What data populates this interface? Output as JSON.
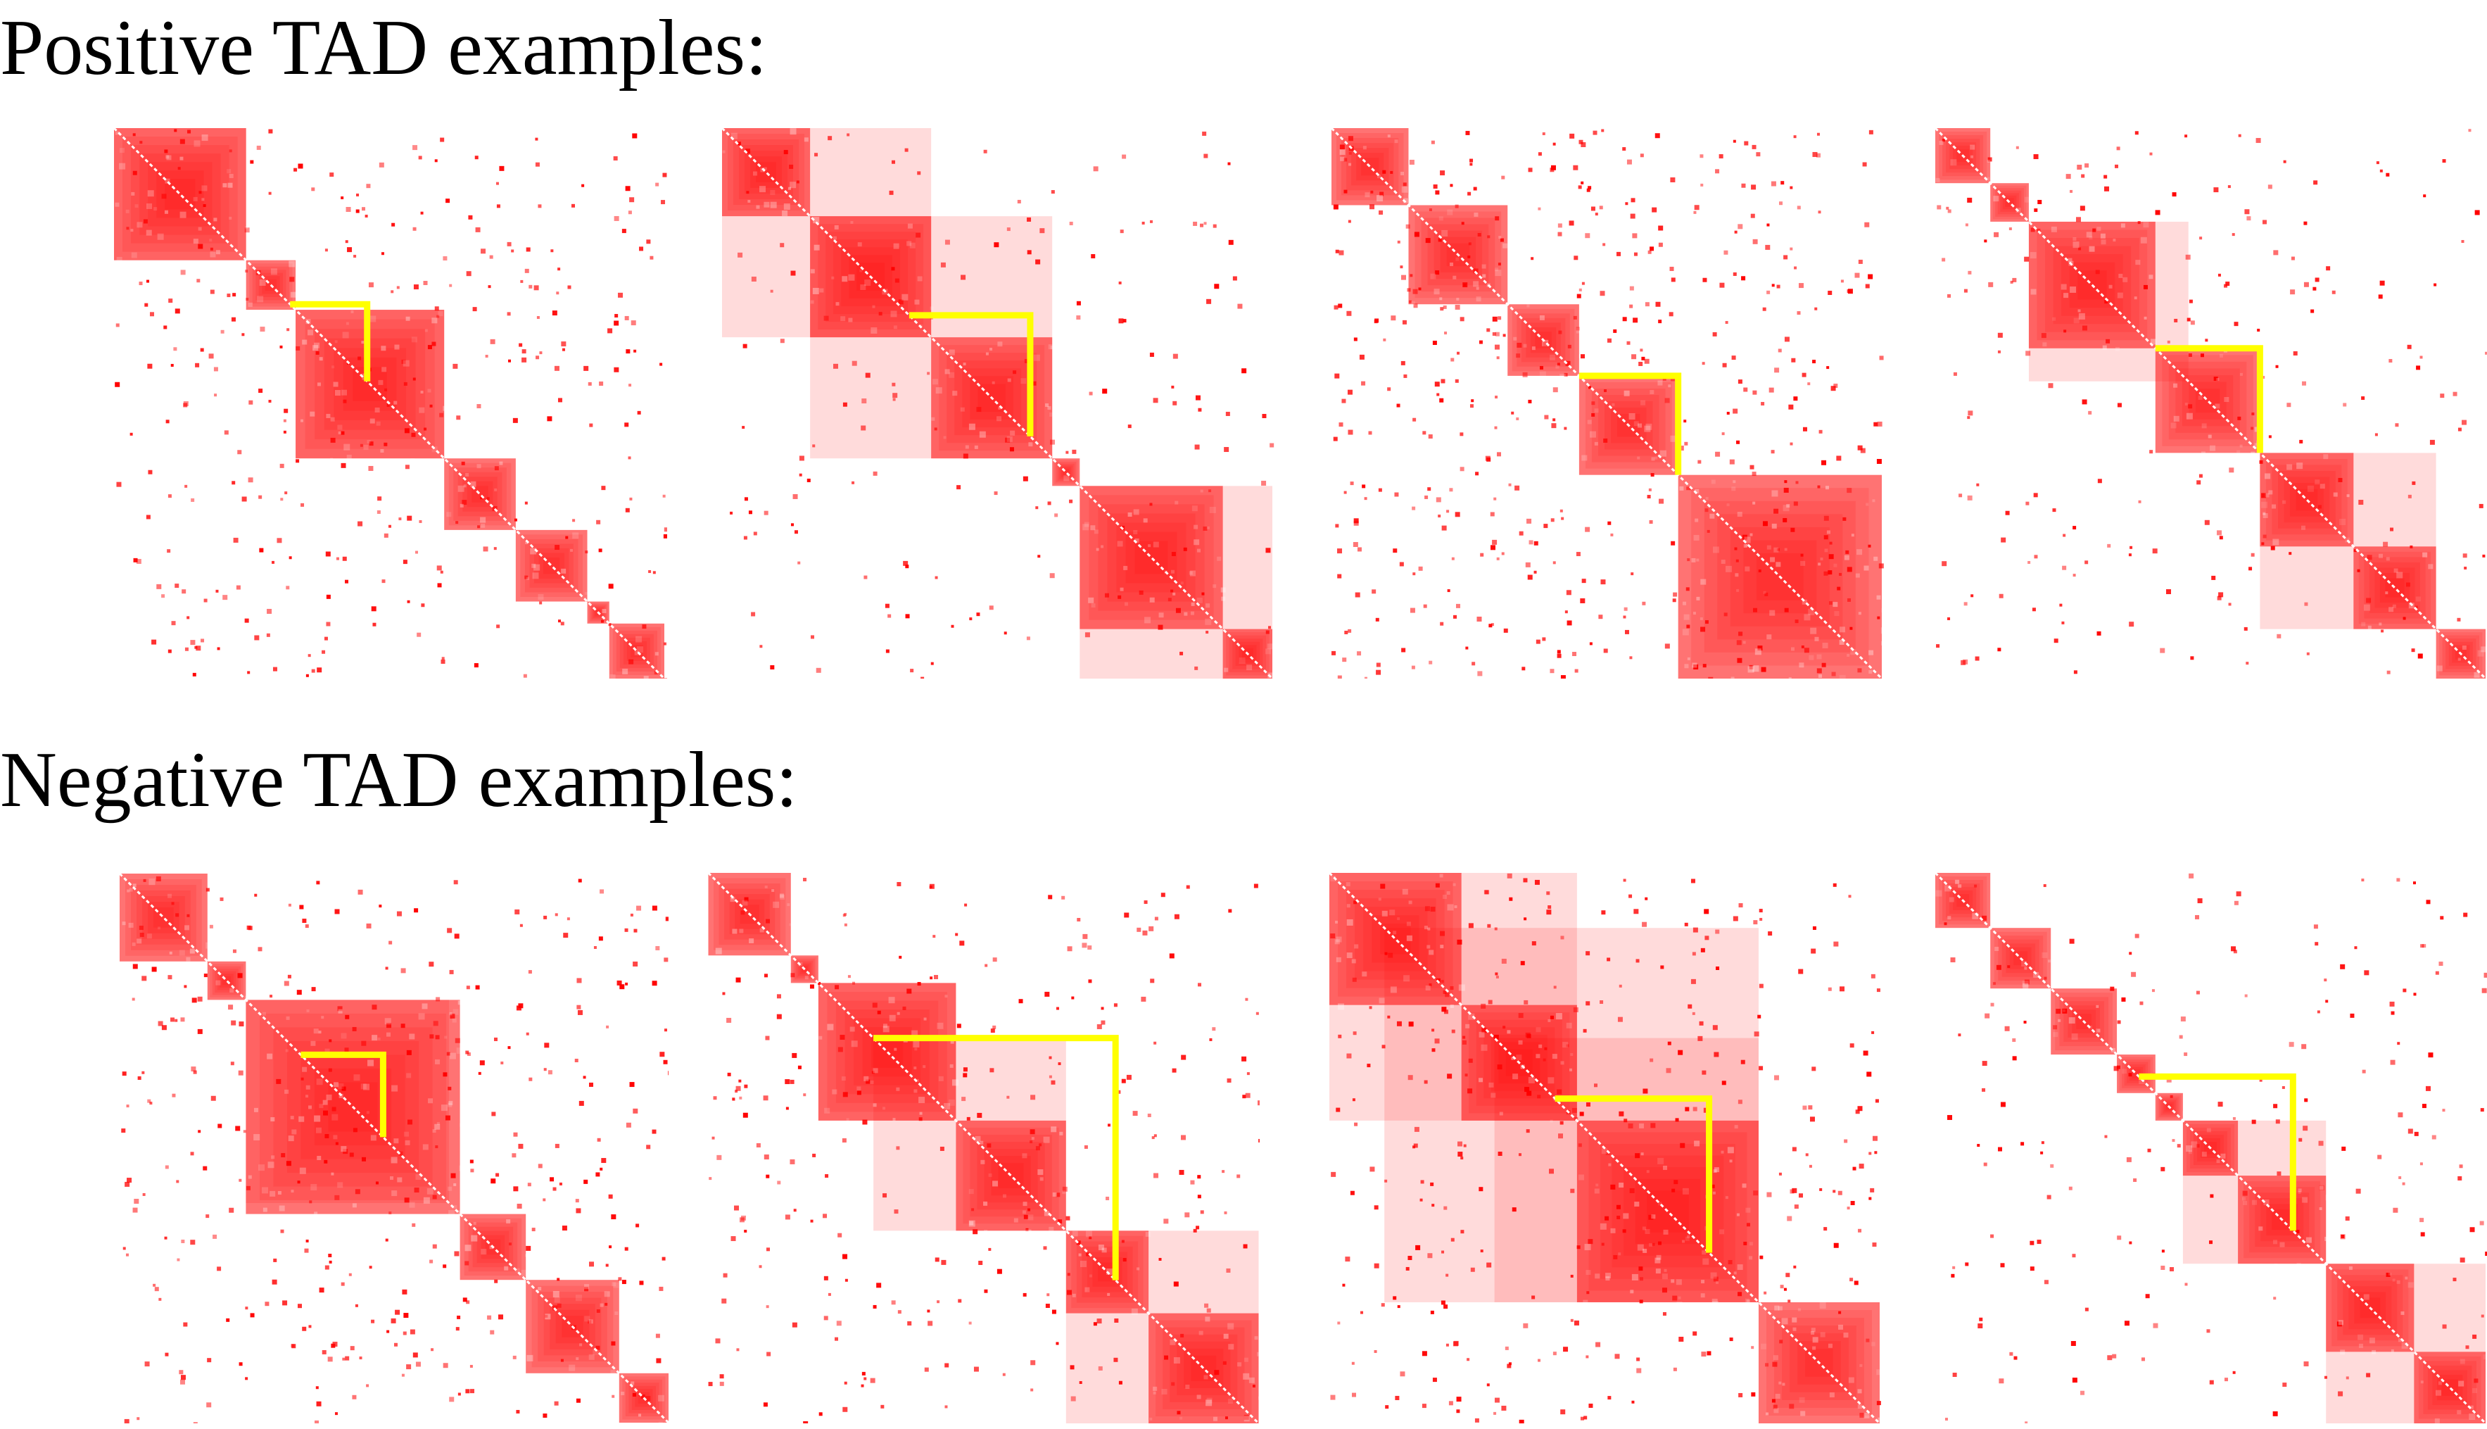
{
  "headings": {
    "positive": "Positive TAD examples:",
    "negative": "Negative TAD examples:"
  },
  "colors": {
    "contact": "#ff0000",
    "highlight": "#ffff00",
    "background": "#ffffff",
    "text": "#000000"
  },
  "panels": [
    {
      "group": "positive",
      "index": 1,
      "tads": [
        [
          0.0,
          0.24
        ],
        [
          0.24,
          0.33
        ],
        [
          0.33,
          0.6
        ],
        [
          0.6,
          0.73
        ],
        [
          0.73,
          0.86
        ],
        [
          0.86,
          0.9
        ],
        [
          0.9,
          1.0
        ]
      ],
      "super": [
        [
          0.0,
          0.24
        ],
        [
          0.33,
          0.6
        ]
      ],
      "highlight": [
        0.32,
        0.46
      ],
      "noise": 0.55
    },
    {
      "group": "positive",
      "index": 2,
      "tads": [
        [
          0.0,
          0.16
        ],
        [
          0.16,
          0.38
        ],
        [
          0.38,
          0.6
        ],
        [
          0.6,
          0.65
        ],
        [
          0.65,
          0.91
        ],
        [
          0.91,
          1.0
        ]
      ],
      "super": [
        [
          0.0,
          0.38
        ],
        [
          0.16,
          0.6
        ],
        [
          0.65,
          1.0
        ]
      ],
      "highlight": [
        0.34,
        0.56
      ],
      "noise": 0.25
    },
    {
      "group": "positive",
      "index": 3,
      "tads": [
        [
          0.0,
          0.14
        ],
        [
          0.14,
          0.32
        ],
        [
          0.32,
          0.45
        ],
        [
          0.45,
          0.63
        ],
        [
          0.63,
          1.0
        ]
      ],
      "super": [],
      "highlight": [
        0.45,
        0.63
      ],
      "noise": 0.85
    },
    {
      "group": "positive",
      "index": 4,
      "tads": [
        [
          0.0,
          0.1
        ],
        [
          0.1,
          0.17
        ],
        [
          0.17,
          0.4
        ],
        [
          0.4,
          0.59
        ],
        [
          0.59,
          0.76
        ],
        [
          0.76,
          0.91
        ],
        [
          0.91,
          1.0
        ]
      ],
      "super": [
        [
          0.17,
          0.46
        ],
        [
          0.59,
          0.91
        ]
      ],
      "highlight": [
        0.4,
        0.59
      ],
      "noise": 0.35
    },
    {
      "group": "negative",
      "index": 1,
      "tads": [
        [
          0.0,
          0.16
        ],
        [
          0.16,
          0.23
        ],
        [
          0.23,
          0.62
        ],
        [
          0.62,
          0.74
        ],
        [
          0.74,
          0.91
        ],
        [
          0.91,
          1.0
        ]
      ],
      "super": [
        [
          0.23,
          0.6
        ]
      ],
      "highlight": [
        0.33,
        0.48
      ],
      "noise": 0.6
    },
    {
      "group": "negative",
      "index": 2,
      "tads": [
        [
          0.0,
          0.15
        ],
        [
          0.15,
          0.2
        ],
        [
          0.2,
          0.45
        ],
        [
          0.45,
          0.65
        ],
        [
          0.65,
          0.8
        ],
        [
          0.8,
          1.0
        ]
      ],
      "super": [
        [
          0.2,
          0.45
        ],
        [
          0.3,
          0.65
        ],
        [
          0.65,
          1.0
        ]
      ],
      "highlight": [
        0.3,
        0.74
      ],
      "noise": 0.45
    },
    {
      "group": "negative",
      "index": 3,
      "tads": [
        [
          0.0,
          0.24
        ],
        [
          0.24,
          0.45
        ],
        [
          0.45,
          0.78
        ],
        [
          0.78,
          1.0
        ]
      ],
      "super": [
        [
          0.0,
          0.45
        ],
        [
          0.1,
          0.78
        ],
        [
          0.3,
          0.78
        ]
      ],
      "highlight": [
        0.41,
        0.69
      ],
      "noise": 0.6
    },
    {
      "group": "negative",
      "index": 4,
      "tads": [
        [
          0.0,
          0.1
        ],
        [
          0.1,
          0.21
        ],
        [
          0.21,
          0.33
        ],
        [
          0.33,
          0.4
        ],
        [
          0.4,
          0.45
        ],
        [
          0.45,
          0.55
        ],
        [
          0.55,
          0.71
        ],
        [
          0.71,
          0.87
        ],
        [
          0.87,
          1.0
        ]
      ],
      "super": [
        [
          0.45,
          0.71
        ],
        [
          0.71,
          1.0
        ]
      ],
      "highlight": [
        0.37,
        0.65
      ],
      "noise": 0.3
    }
  ]
}
